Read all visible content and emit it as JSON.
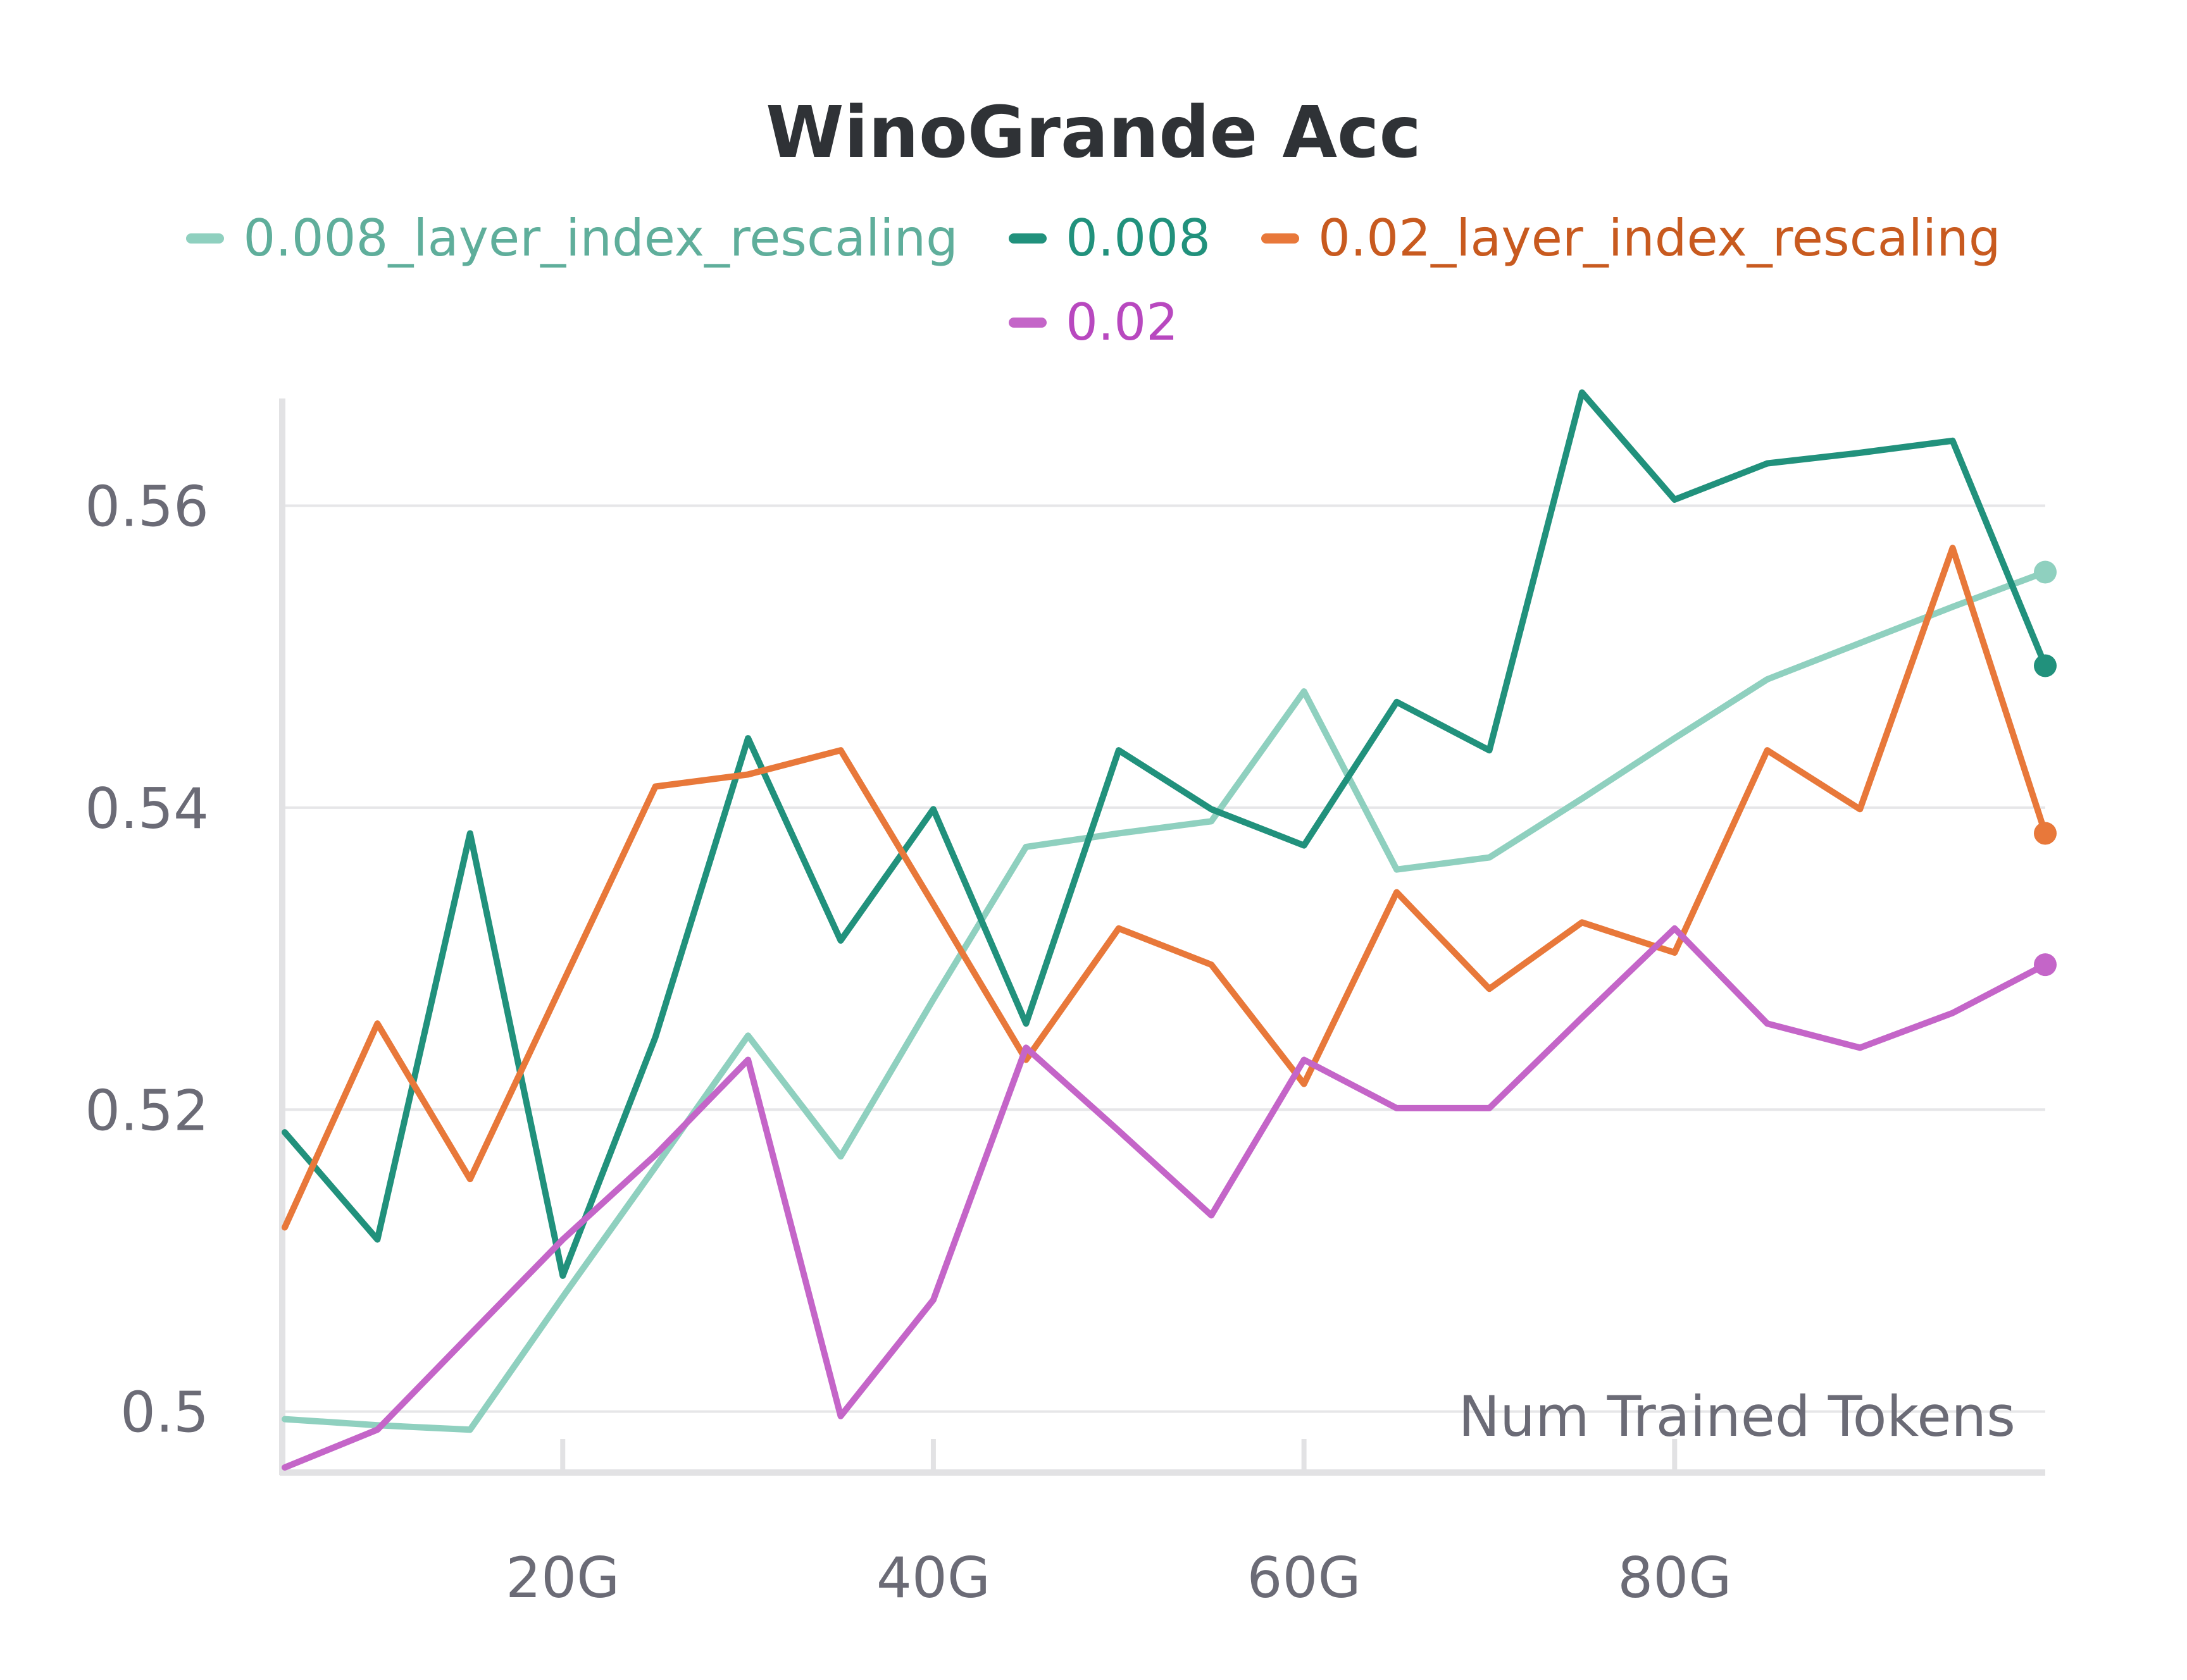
{
  "chart_data": {
    "type": "line",
    "title": "WinoGrande Acc",
    "xlabel": "Num Trained Tokens",
    "ylabel": "",
    "xlim": [
      5,
      100
    ],
    "ylim": [
      0.4963,
      0.5671
    ],
    "x_ticks": [
      20,
      40,
      60,
      80
    ],
    "x_tick_labels": [
      "20G",
      "40G",
      "60G",
      "80G"
    ],
    "y_ticks": [
      0.5,
      0.52,
      0.54,
      0.56
    ],
    "y_tick_labels": [
      "0.5",
      "0.52",
      "0.54",
      "0.56"
    ],
    "grid": true,
    "legend_position": "top-center",
    "x": [
      5,
      10,
      15,
      20,
      25,
      30,
      35,
      40,
      45,
      50,
      55,
      60,
      65,
      70,
      75,
      80,
      85,
      90,
      95,
      100
    ],
    "series": [
      {
        "name": "0.008_layer_index_rescaling",
        "color": "#8fd0bf",
        "label_color": "#5fae9b",
        "values": [
          0.4995,
          0.4991,
          0.4988,
          0.5076,
          0.5162,
          0.5249,
          0.5169,
          0.5273,
          0.5374,
          0.5383,
          0.5391,
          0.5477,
          0.5359,
          0.5367,
          0.5406,
          0.5446,
          0.5485,
          0.5509,
          0.5533,
          0.5556
        ]
      },
      {
        "name": "0.008",
        "color": "#21917c",
        "label_color": "#21917c",
        "values": [
          0.5185,
          0.5114,
          0.5383,
          0.509,
          0.5248,
          0.5446,
          0.5312,
          0.5399,
          0.5257,
          0.5438,
          0.5399,
          0.5375,
          0.547,
          0.5438,
          0.5675,
          0.5604,
          0.5628,
          0.5635,
          0.5643,
          0.5494
        ]
      },
      {
        "name": "0.02_layer_index_rescaling",
        "color": "#e8783a",
        "label_color": "#c85a1f",
        "values": [
          0.5122,
          0.5257,
          0.5154,
          0.5284,
          0.5414,
          0.5422,
          0.5438,
          0.5336,
          0.5233,
          0.532,
          0.5296,
          0.5217,
          0.5344,
          0.528,
          0.5324,
          0.5304,
          0.5438,
          0.5399,
          0.5572,
          0.5383
        ]
      },
      {
        "name": "0.02",
        "color": "#c465c8",
        "label_color": "#b848bf",
        "values": [
          0.4963,
          0.4988,
          0.5051,
          0.5114,
          0.517,
          0.5233,
          0.4997,
          0.5074,
          0.5241,
          0.5186,
          0.513,
          0.5233,
          0.5201,
          0.5201,
          0.5261,
          0.532,
          0.5257,
          0.5241,
          0.5264,
          0.5296
        ]
      }
    ]
  }
}
